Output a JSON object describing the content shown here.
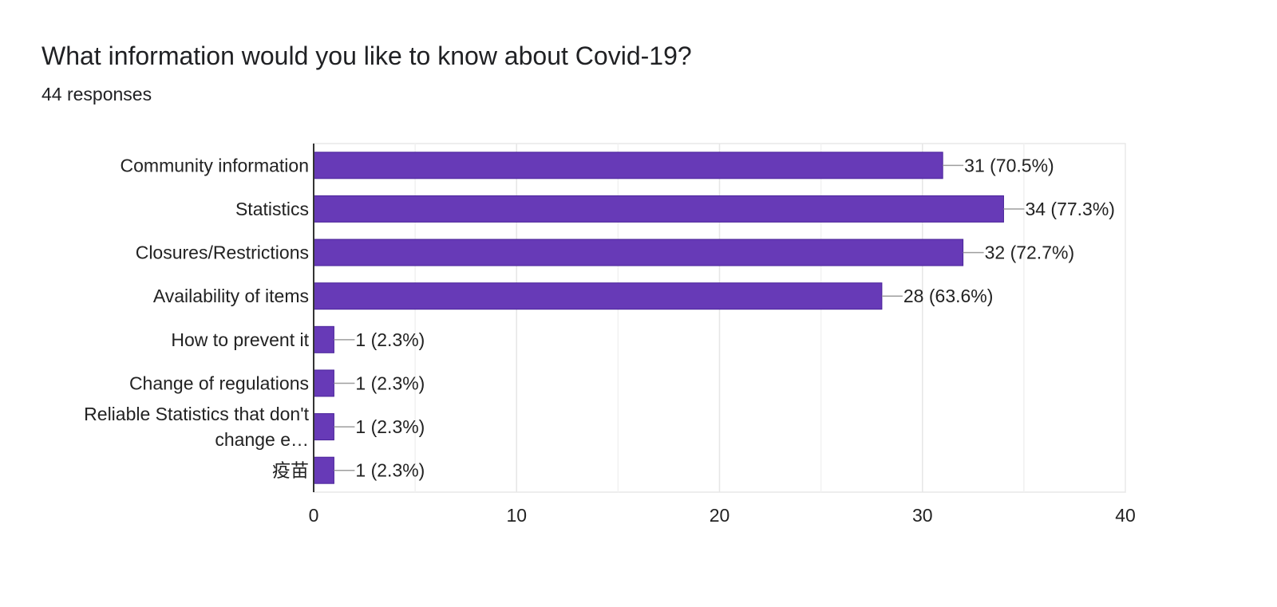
{
  "header": {
    "title": "What information would you like to know about Covid-19?",
    "responses": "44 responses"
  },
  "chart_data": {
    "type": "bar",
    "orientation": "horizontal",
    "categories": [
      "Community information",
      "Statistics",
      "Closures/Restrictions",
      "Availability of items",
      "How to prevent it",
      "Change of regulations",
      "Reliable Statistics that don't change e…",
      "疫苗"
    ],
    "category_label_lines": [
      [
        "Community information"
      ],
      [
        "Statistics"
      ],
      [
        "Closures/Restrictions"
      ],
      [
        "Availability of items"
      ],
      [
        "How to prevent it"
      ],
      [
        "Change of regulations"
      ],
      [
        "Reliable Statistics that don't",
        "change e…"
      ],
      [
        "疫苗"
      ]
    ],
    "values": [
      31,
      34,
      32,
      28,
      1,
      1,
      1,
      1
    ],
    "data_labels": [
      "31 (70.5%)",
      "34 (77.3%)",
      "32 (72.7%)",
      "28 (63.6%)",
      "1 (2.3%)",
      "1 (2.3%)",
      "1 (2.3%)",
      "1 (2.3%)"
    ],
    "xlim": [
      0,
      40
    ],
    "x_ticks": [
      0,
      10,
      20,
      30,
      40
    ],
    "grid": true,
    "legend": "none",
    "bar_color": "#673ab7"
  }
}
